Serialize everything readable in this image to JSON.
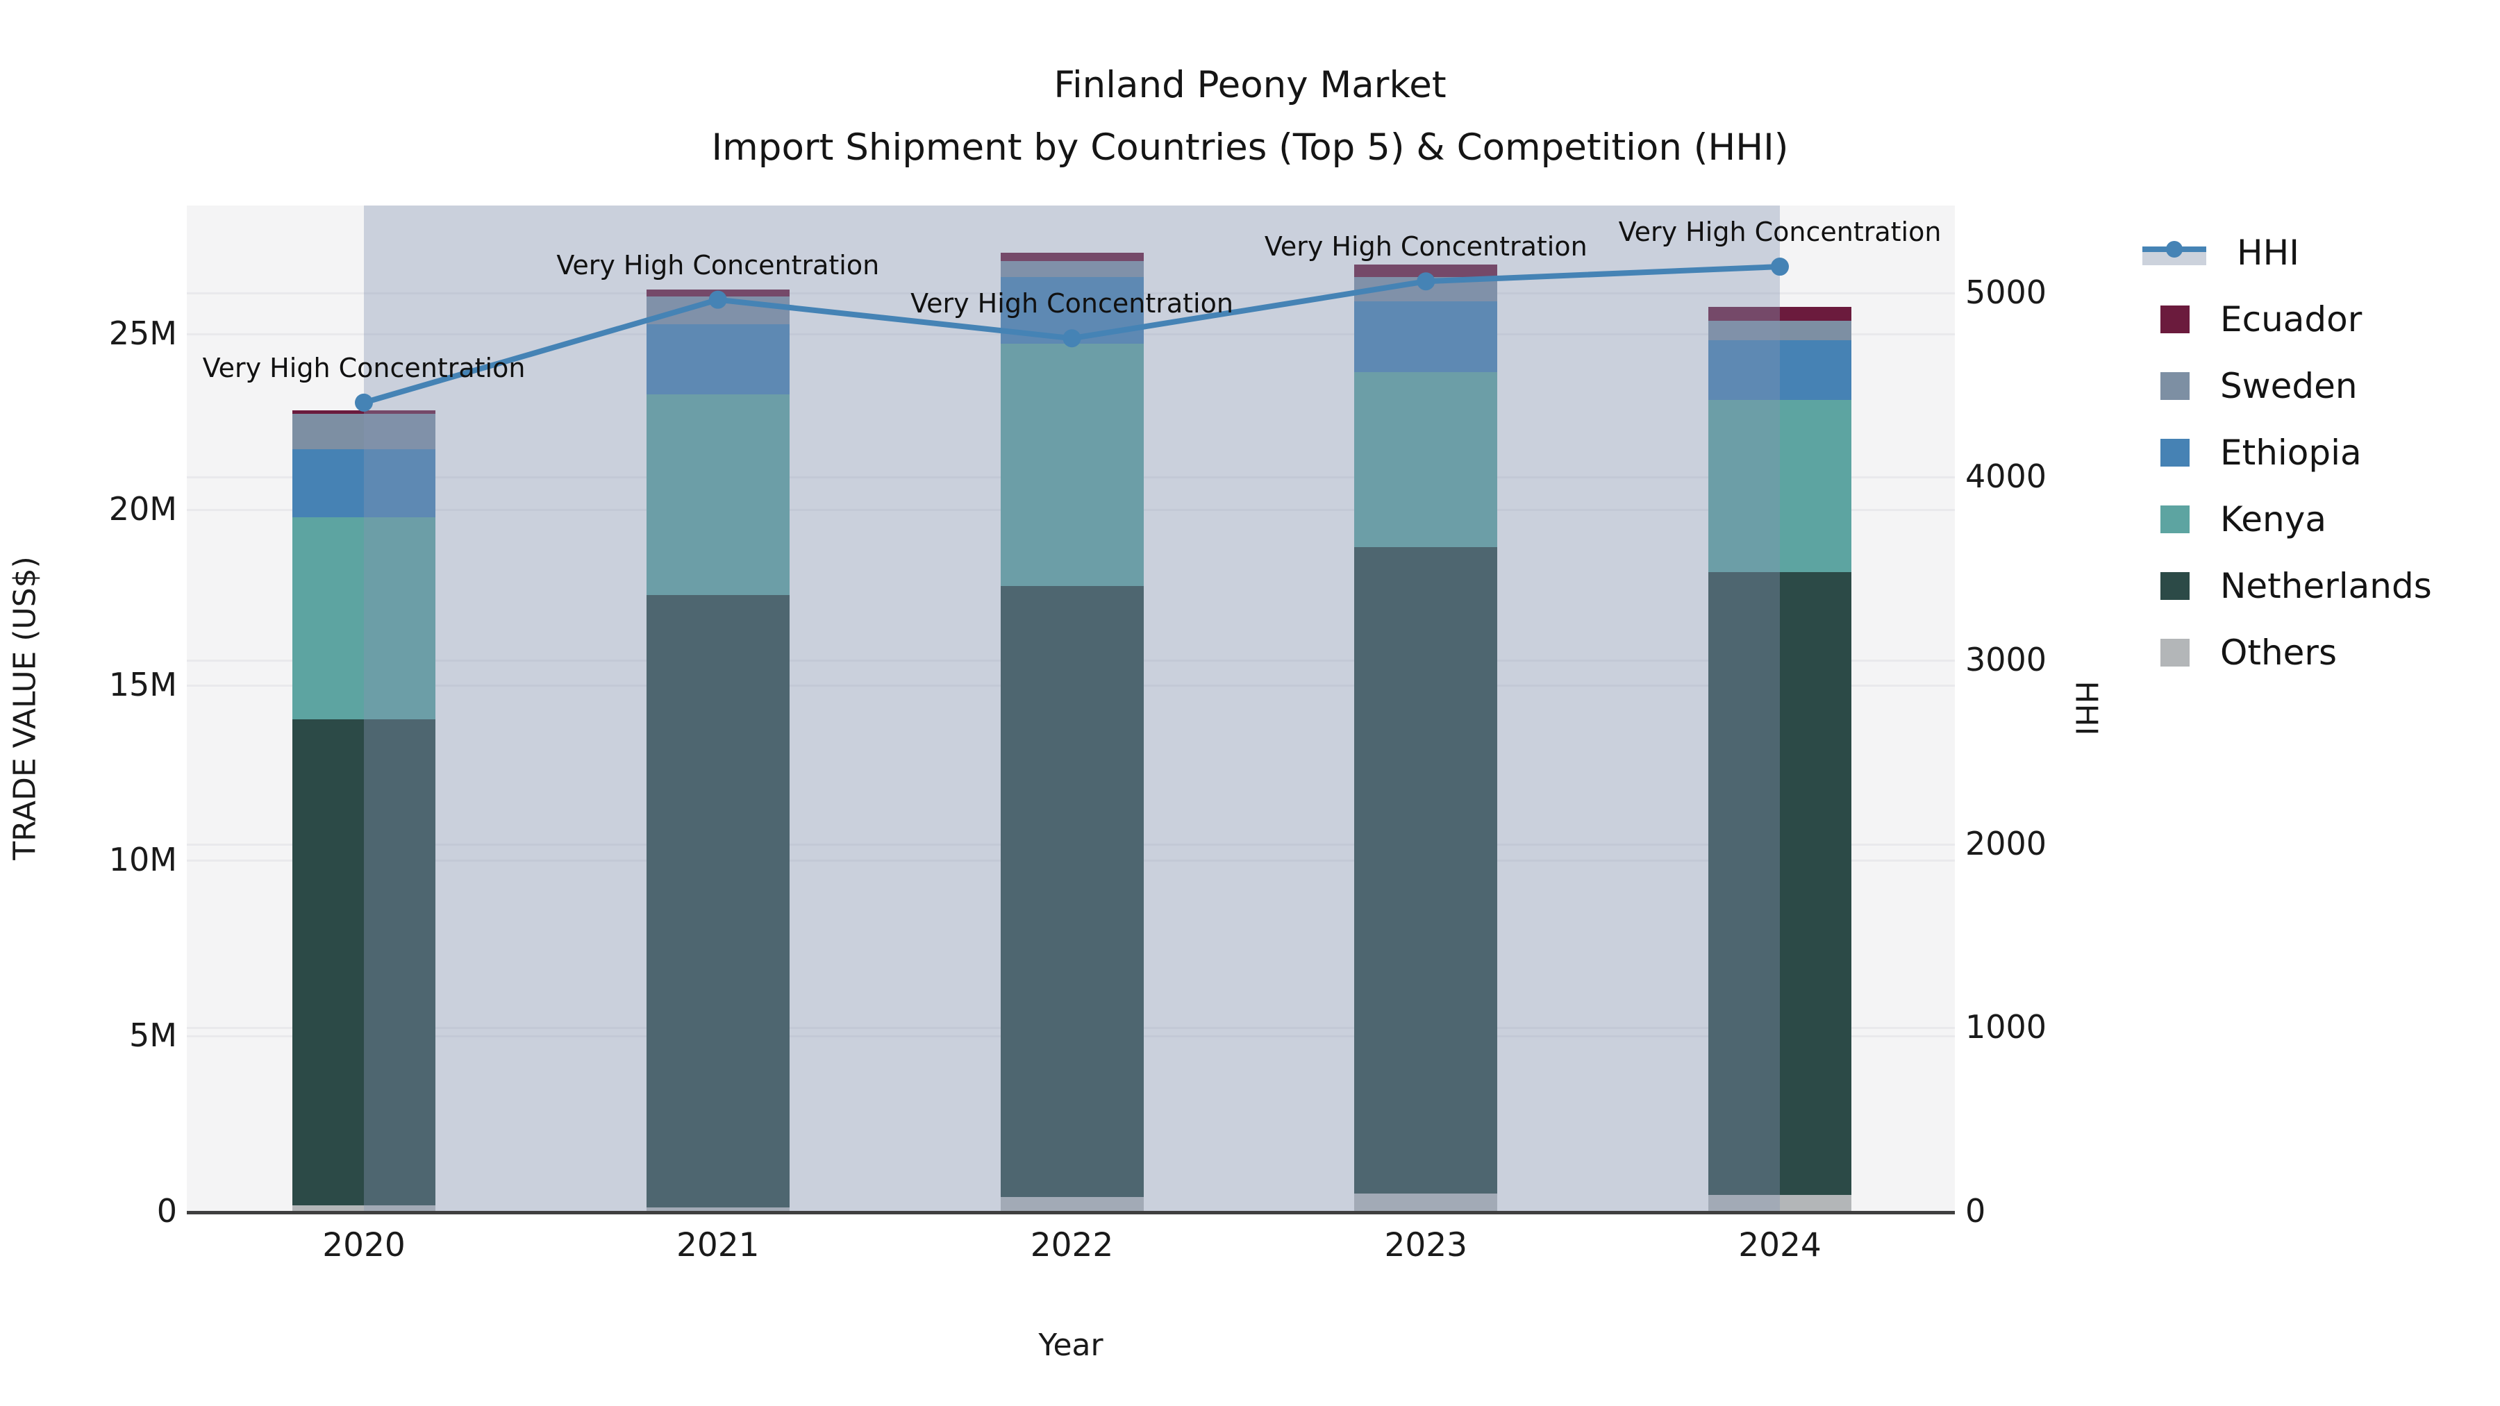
{
  "title": {
    "line1": "Finland Peony Market",
    "line2": "Import Shipment by Countries (Top 5) & Competition (HHI)"
  },
  "axes": {
    "x_label": "Year",
    "y_left_label": "TRADE VALUE (US$)",
    "y_right_label": "HHI",
    "y_left_ticks": [
      {
        "label": "0",
        "value": 0
      },
      {
        "label": "5M",
        "value": 5
      },
      {
        "label": "10M",
        "value": 10
      },
      {
        "label": "15M",
        "value": 15
      },
      {
        "label": "20M",
        "value": 20
      },
      {
        "label": "25M",
        "value": 25
      }
    ],
    "y_right_ticks": [
      {
        "label": "0",
        "value": 0
      },
      {
        "label": "1000",
        "value": 1000
      },
      {
        "label": "2000",
        "value": 2000
      },
      {
        "label": "3000",
        "value": 3000
      },
      {
        "label": "4000",
        "value": 4000
      },
      {
        "label": "5000",
        "value": 5000
      }
    ]
  },
  "legend": [
    {
      "label": "HHI",
      "type": "line"
    },
    {
      "label": "Ecuador",
      "type": "patch",
      "color": "#6b1b3d"
    },
    {
      "label": "Sweden",
      "type": "patch",
      "color": "#7d8fa3"
    },
    {
      "label": "Ethiopia",
      "type": "patch",
      "color": "#4682b4"
    },
    {
      "label": "Kenya",
      "type": "patch",
      "color": "#5da4a1"
    },
    {
      "label": "Netherlands",
      "type": "patch",
      "color": "#2c4a47"
    },
    {
      "label": "Others",
      "type": "patch",
      "color": "#b3b6b8"
    }
  ],
  "colors": {
    "hhi_line": "#4583b5",
    "span_overlay": "rgba(133,150,178,0.38)",
    "plot_background": "#f4f4f5",
    "gridline": "#e9e9ec",
    "axis_spine": "#3f3f3f"
  },
  "chart_data": {
    "type": "bar+line",
    "title": "Finland Peony Market — Import Shipment by Countries (Top 5) & Competition (HHI)",
    "categories": [
      "2020",
      "2021",
      "2022",
      "2023",
      "2024"
    ],
    "bar_unit": "Million US$",
    "stack_order_bottom_to_top": [
      "Others",
      "Netherlands",
      "Kenya",
      "Ethiopia",
      "Sweden",
      "Ecuador"
    ],
    "series": [
      {
        "name": "Others",
        "color": "#b3b6b8",
        "values": [
          0.15,
          0.1,
          0.4,
          0.5,
          0.45
        ]
      },
      {
        "name": "Netherlands",
        "color": "#2c4a47",
        "values": [
          13.85,
          17.45,
          17.4,
          18.4,
          17.75
        ]
      },
      {
        "name": "Kenya",
        "color": "#5da4a1",
        "values": [
          5.75,
          5.7,
          6.9,
          5.0,
          4.9
        ]
      },
      {
        "name": "Ethiopia",
        "color": "#4682b4",
        "values": [
          1.95,
          2.0,
          1.9,
          2.0,
          1.7
        ]
      },
      {
        "name": "Sweden",
        "color": "#7d8fa3",
        "values": [
          1.0,
          0.8,
          0.45,
          0.7,
          0.55
        ]
      },
      {
        "name": "Ecuador",
        "color": "#6b1b3d",
        "values": [
          0.1,
          0.2,
          0.25,
          0.35,
          0.4
        ]
      }
    ],
    "bar_totals": [
      22.8,
      26.25,
      27.3,
      26.95,
      25.75
    ],
    "line_series": {
      "name": "HHI",
      "axis": "right",
      "color": "#4583b5",
      "values": [
        4400,
        4960,
        4750,
        5060,
        5140
      ]
    },
    "annotation_text": "Very High Concentration",
    "annotations_per_year": [
      "Very High Concentration",
      "Very High Concentration",
      "Very High Concentration",
      "Very High Concentration",
      "Very High Concentration"
    ],
    "xlabel": "Year",
    "ylabel_left": "TRADE VALUE (US$)",
    "ylabel_right": "HHI",
    "ylim_left": [
      0,
      28.6
    ],
    "ylim_right": [
      0,
      5470
    ],
    "grid": true,
    "legend_position": "outside-right",
    "shaded_span_x": [
      "2020",
      "2024"
    ]
  }
}
